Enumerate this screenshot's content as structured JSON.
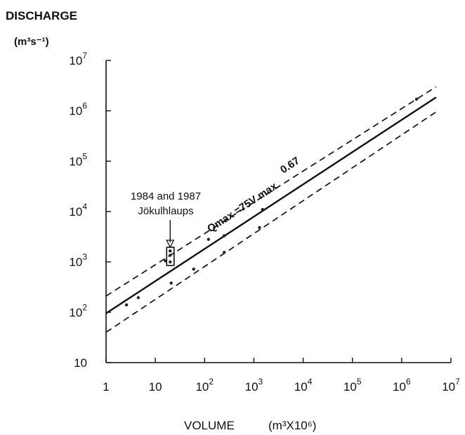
{
  "chart_data": {
    "type": "scatter",
    "xscale": "log",
    "yscale": "log",
    "xlim": [
      1,
      10000000
    ],
    "ylim": [
      10,
      10000000
    ],
    "grid": false,
    "ylabel_line1": "DISCHARGE",
    "ylabel_line2": "(m³s⁻¹)",
    "xlabel_main": "VOLUME",
    "xlabel_unit": "(m³X10⁶)",
    "x_ticks": [
      {
        "value": 1,
        "label": "1"
      },
      {
        "value": 10,
        "label": "10"
      },
      {
        "value": 100,
        "base": "10",
        "exp": "2"
      },
      {
        "value": 1000,
        "base": "10",
        "exp": "3"
      },
      {
        "value": 10000,
        "base": "10",
        "exp": "4"
      },
      {
        "value": 100000,
        "base": "10",
        "exp": "5"
      },
      {
        "value": 1000000,
        "base": "10",
        "exp": "6"
      },
      {
        "value": 10000000,
        "base": "10",
        "exp": "7"
      }
    ],
    "y_ticks": [
      {
        "value": 10,
        "label": "10"
      },
      {
        "value": 100,
        "base": "10",
        "exp": "2"
      },
      {
        "value": 1000,
        "base": "10",
        "exp": "3"
      },
      {
        "value": 10000,
        "base": "10",
        "exp": "4"
      },
      {
        "value": 100000,
        "base": "10",
        "exp": "5"
      },
      {
        "value": 1000000,
        "base": "10",
        "exp": "6"
      },
      {
        "value": 10000000,
        "base": "10",
        "exp": "7"
      }
    ],
    "lines": [
      {
        "style": "solid",
        "points": [
          [
            1,
            95
          ],
          [
            5000000,
            1850000
          ]
        ]
      },
      {
        "style": "dashed",
        "points": [
          [
            1,
            210
          ],
          [
            5000000,
            3000000
          ]
        ]
      },
      {
        "style": "dashed",
        "points": [
          [
            1,
            40
          ],
          [
            5000000,
            950000
          ]
        ]
      }
    ],
    "points": [
      {
        "x": 2.6,
        "y": 140
      },
      {
        "x": 4.5,
        "y": 195
      },
      {
        "x": 16,
        "y": 1050
      },
      {
        "x": 20,
        "y": 1650
      },
      {
        "x": 20,
        "y": 1350
      },
      {
        "x": 20,
        "y": 1000
      },
      {
        "x": 21,
        "y": 380
      },
      {
        "x": 60,
        "y": 720
      },
      {
        "x": 120,
        "y": 2800
      },
      {
        "x": 250,
        "y": 3300
      },
      {
        "x": 250,
        "y": 1550
      },
      {
        "x": 1300,
        "y": 4800
      },
      {
        "x": 1500,
        "y": 11000
      },
      {
        "x": 2000000,
        "y": 1700000
      }
    ],
    "highlight_box": {
      "x": [
        17,
        24
      ],
      "y": [
        850,
        1950
      ]
    },
    "annotation": {
      "line1": "1984 and 1987",
      "line2": "Jökulhlaups",
      "arrow_to": [
        20,
        1950
      ]
    },
    "equation": {
      "text": "Qmax =75V max",
      "exponent": "0.67",
      "anchor": [
        130,
        3800
      ],
      "angle_deg": -33.5
    }
  }
}
